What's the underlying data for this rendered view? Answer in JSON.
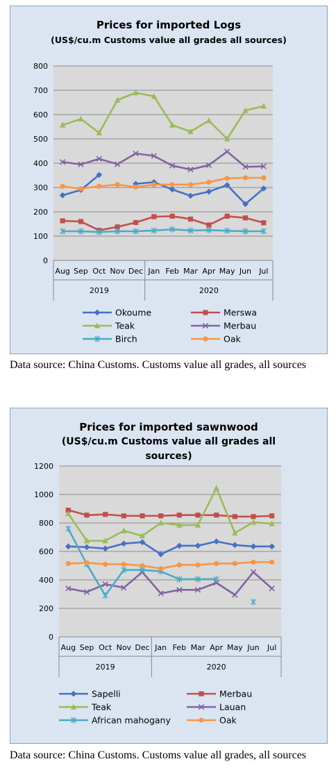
{
  "charts": [
    {
      "title_line1": "Prices for imported Logs",
      "title_line2": "(US$/cu.m Customs value all grades all sources)",
      "caption": "Data source: China Customs. Customs value all grades, all sources"
    },
    {
      "title_line1": "Prices for imported sawnwood",
      "title_line2": "(US$/cu.m Customs value all grades all",
      "title_line3": "sources)",
      "caption": "Data source: China Customs. Customs value all grades, all sources"
    }
  ],
  "chart_data": [
    {
      "type": "line",
      "title": "Prices for imported Logs",
      "subtitle": "(US$/cu.m Customs value all grades all sources)",
      "categories": [
        "Aug",
        "Sep",
        "Oct",
        "Nov",
        "Dec",
        "Jan",
        "Feb",
        "Mar",
        "Apr",
        "May",
        "Jun",
        "Jul"
      ],
      "year_groups": [
        {
          "label": "2019",
          "span": 5
        },
        {
          "label": "2020",
          "span": 7
        }
      ],
      "ylim": [
        0,
        800
      ],
      "yticks": [
        0,
        100,
        200,
        300,
        400,
        500,
        600,
        700,
        800
      ],
      "grid": true,
      "legend_position": "bottom",
      "series": [
        {
          "name": "Okoume",
          "color": "#4472c4",
          "marker": "diamond",
          "values": [
            268,
            290,
            352,
            null,
            315,
            322,
            292,
            266,
            283,
            310,
            232,
            296
          ]
        },
        {
          "name": "Merswa",
          "color": "#c0504d",
          "marker": "square",
          "values": [
            163,
            160,
            124,
            138,
            156,
            180,
            182,
            170,
            146,
            182,
            175,
            155
          ]
        },
        {
          "name": "Teak",
          "color": "#9bbb59",
          "marker": "triangle",
          "values": [
            557,
            582,
            525,
            660,
            690,
            675,
            557,
            530,
            575,
            500,
            617,
            635
          ]
        },
        {
          "name": "Merbau",
          "color": "#8064a2",
          "marker": "x",
          "values": [
            405,
            395,
            418,
            396,
            440,
            430,
            390,
            374,
            392,
            448,
            385,
            387
          ]
        },
        {
          "name": "Birch",
          "color": "#4bacc6",
          "marker": "star",
          "values": [
            120,
            120,
            117,
            120,
            120,
            123,
            128,
            123,
            125,
            122,
            120,
            120
          ]
        },
        {
          "name": "Oak",
          "color": "#f79646",
          "marker": "circle",
          "values": [
            305,
            295,
            305,
            312,
            302,
            312,
            312,
            312,
            322,
            338,
            340,
            340
          ]
        }
      ]
    },
    {
      "type": "line",
      "title": "Prices for imported sawnwood",
      "subtitle": "(US$/cu.m Customs value all grades all sources)",
      "categories": [
        "Aug",
        "Sep",
        "Oct",
        "Nov",
        "Dec",
        "Jan",
        "Feb",
        "Mar",
        "Apr",
        "May",
        "Jun",
        "Jul"
      ],
      "year_groups": [
        {
          "label": "2019",
          "span": 5
        },
        {
          "label": "2020",
          "span": 7
        }
      ],
      "ylim": [
        0,
        1200
      ],
      "yticks": [
        0,
        200,
        400,
        600,
        800,
        1000,
        1200
      ],
      "grid": true,
      "legend_position": "bottom",
      "series": [
        {
          "name": "Sapelli",
          "color": "#4472c4",
          "marker": "diamond",
          "values": [
            635,
            630,
            620,
            655,
            665,
            580,
            640,
            640,
            670,
            645,
            635,
            635
          ]
        },
        {
          "name": "Merbau",
          "color": "#c0504d",
          "marker": "square",
          "values": [
            890,
            855,
            860,
            850,
            850,
            850,
            855,
            855,
            855,
            845,
            845,
            850
          ]
        },
        {
          "name": "Teak",
          "color": "#9bbb59",
          "marker": "triangle",
          "values": [
            865,
            675,
            675,
            745,
            710,
            800,
            785,
            785,
            1045,
            730,
            805,
            795
          ]
        },
        {
          "name": "Lauan",
          "color": "#8064a2",
          "marker": "x",
          "values": [
            340,
            315,
            370,
            345,
            455,
            305,
            330,
            330,
            380,
            295,
            455,
            340
          ]
        },
        {
          "name": "African mahogany",
          "color": "#4bacc6",
          "marker": "star",
          "values": [
            760,
            510,
            290,
            470,
            470,
            460,
            405,
            405,
            405,
            null,
            245,
            null
          ]
        },
        {
          "name": "Oak",
          "color": "#f79646",
          "marker": "circle",
          "values": [
            515,
            520,
            510,
            510,
            500,
            480,
            505,
            505,
            515,
            515,
            525,
            525
          ]
        }
      ]
    }
  ]
}
